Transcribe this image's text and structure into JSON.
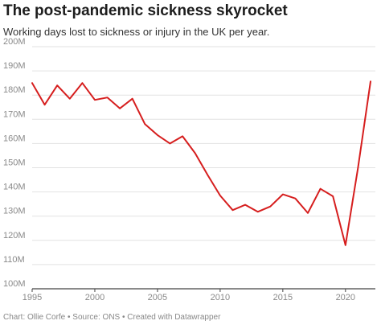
{
  "title": "The post-pandemic sickness skyrocket",
  "subtitle": "Working days lost to sickness or injury in the UK per year.",
  "footer": "Chart: Ollie Corfe • Source: ONS • Created with Datawrapper",
  "colors": {
    "line": "#d61e1e",
    "grid": "#e2e2e2",
    "axis": "#444444",
    "tick_text": "#8a8a8a"
  },
  "chart_data": {
    "type": "line",
    "title": "The post-pandemic sickness skyrocket",
    "subtitle": "Working days lost to sickness or injury in the UK per year.",
    "xlabel": "",
    "ylabel": "",
    "xlim": [
      1995,
      2022
    ],
    "ylim": [
      100,
      200
    ],
    "y_unit": "M",
    "grid": true,
    "legend": "none",
    "x_ticks": [
      1995,
      2000,
      2005,
      2010,
      2015,
      2020
    ],
    "x_tick_labels": [
      "1995",
      "2000",
      "2005",
      "2010",
      "2015",
      "2020"
    ],
    "y_ticks": [
      100,
      110,
      120,
      130,
      140,
      150,
      160,
      170,
      180,
      190,
      200
    ],
    "y_tick_labels": [
      "100M",
      "110M",
      "120M",
      "130M",
      "140M",
      "150M",
      "160M",
      "170M",
      "180M",
      "190M",
      "200M"
    ],
    "series": [
      {
        "color": "#d61e1e",
        "x": [
          1995,
          1996,
          1997,
          1998,
          1999,
          2000,
          2001,
          2002,
          2003,
          2004,
          2005,
          2006,
          2007,
          2008,
          2009,
          2010,
          2011,
          2012,
          2013,
          2014,
          2015,
          2016,
          2017,
          2018,
          2019,
          2020,
          2021,
          2022
        ],
        "y": [
          185,
          176,
          184,
          178.5,
          185,
          178,
          179,
          174.5,
          178.5,
          168,
          163.5,
          160,
          163,
          156,
          147,
          138.5,
          132.5,
          134.7,
          131.8,
          134,
          139,
          137.3,
          131.3,
          141.3,
          138.2,
          118,
          150,
          185.6
        ]
      }
    ]
  }
}
